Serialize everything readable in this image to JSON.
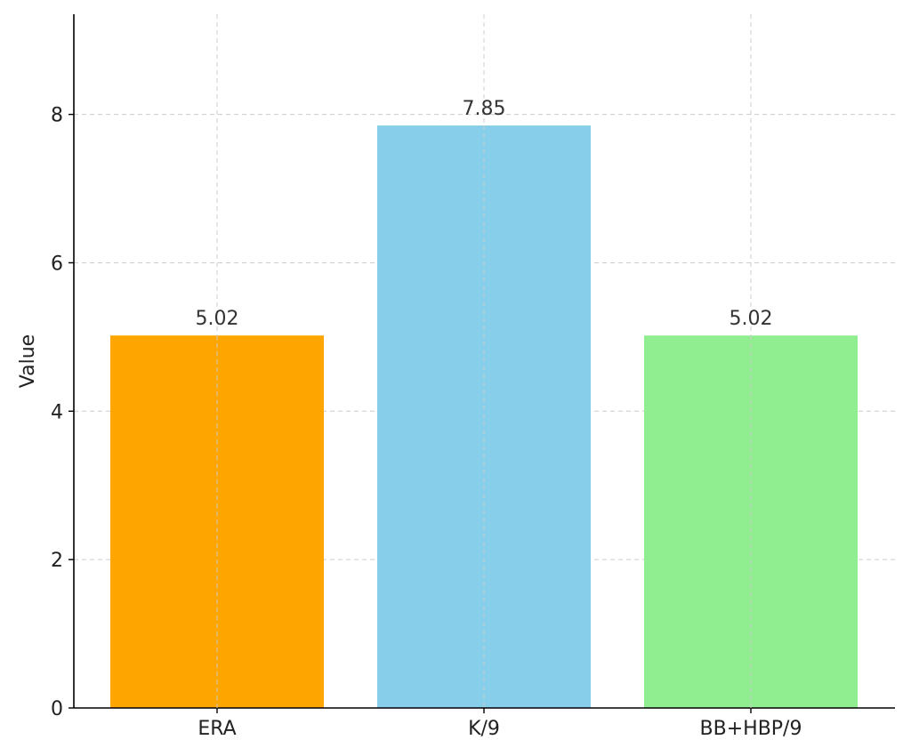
{
  "chart_data": {
    "type": "bar",
    "categories": [
      "ERA",
      "K/9",
      "BB+HBP/9"
    ],
    "values": [
      5.02,
      7.85,
      5.02
    ],
    "value_labels": [
      "5.02",
      "7.85",
      "5.02"
    ],
    "colors": [
      "#FFA500",
      "#87CEEB",
      "#90EE90"
    ],
    "title": "",
    "xlabel": "",
    "ylabel": "Value",
    "ylim": [
      0,
      9.35
    ],
    "yticks": [
      0,
      2,
      4,
      6,
      8
    ],
    "ytick_labels": [
      "0",
      "2",
      "4",
      "6",
      "8"
    ],
    "grid": true
  }
}
